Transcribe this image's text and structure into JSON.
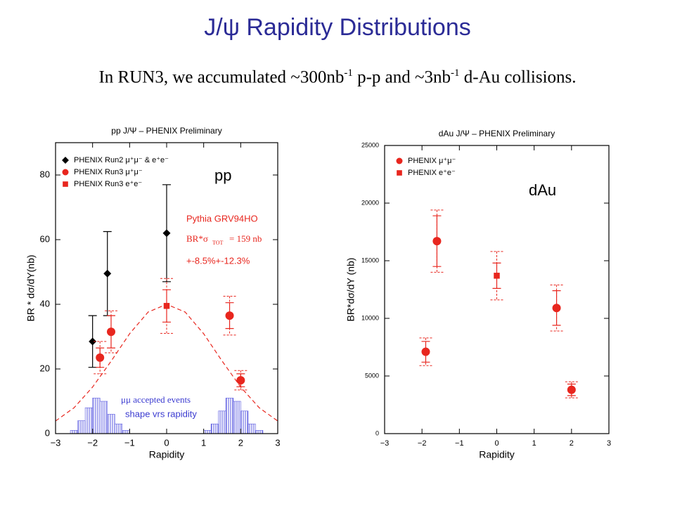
{
  "slide": {
    "title": "J/ψ Rapidity Distributions",
    "subtitle": [
      "In RUN3, we accumulated ~300nb",
      "-1",
      " p-p and ~3nb",
      "-1",
      " d-Au collisions."
    ]
  },
  "chart_data": [
    {
      "type": "scatter",
      "title": "pp J/Ψ – PHENIX Preliminary",
      "x_label": "Rapidity",
      "y_label": "BR * dσ/dY(nb)",
      "xlim": [
        -3,
        3
      ],
      "ylim": [
        0,
        90
      ],
      "xticks": [
        {
          "value": -3,
          "label": "−3"
        },
        {
          "value": -2,
          "label": "−2"
        },
        {
          "value": -1,
          "label": "−1"
        },
        0,
        1,
        2,
        3
      ],
      "yticks": [
        0,
        20,
        40,
        60,
        80
      ],
      "series": [
        {
          "name": "PHENIX Run2 μ⁺μ⁻ & e⁺e⁻",
          "color": "#000000",
          "marker": "diamond",
          "x": [
            -2,
            -1.6,
            0
          ],
          "values": [
            28.5,
            49.5,
            62
          ],
          "errors": [
            8,
            13,
            15
          ]
        },
        {
          "name": "PHENIX Run3 μ⁺μ⁻",
          "color": "#e8261e",
          "marker": "circle",
          "x": [
            -1.8,
            -1.5,
            1.7,
            2
          ],
          "values": [
            23.5,
            31.5,
            36.5,
            16.5
          ],
          "errors": [
            3,
            5,
            4,
            2
          ],
          "sys_errors": [
            5,
            6.5,
            6,
            3
          ]
        },
        {
          "name": "PHENIX Run3 e⁺e⁻",
          "color": "#e8261e",
          "marker": "square",
          "x": [
            0
          ],
          "values": [
            39.5
          ],
          "errors": [
            5
          ],
          "sys_errors": [
            8.5
          ]
        }
      ],
      "curve": {
        "color": "#e8261e",
        "dashed": true,
        "x": [
          -3,
          -2.5,
          -2,
          -1.5,
          -1,
          -0.5,
          0,
          0.5,
          1,
          1.5,
          2,
          2.5,
          3
        ],
        "values": [
          3.9,
          8.0,
          14.4,
          22.4,
          30.9,
          37.6,
          40,
          37.6,
          30.9,
          22.4,
          14.4,
          8.0,
          3.9
        ]
      },
      "histograms": [
        {
          "color": "#5a5ae0",
          "bins": [
            -2.6,
            -2.4,
            -2.2,
            -2.0,
            -1.8,
            -1.6,
            -1.4,
            -1.2,
            -1.0
          ],
          "values": [
            1,
            4,
            8,
            11,
            10,
            6,
            3,
            1
          ]
        },
        {
          "color": "#5a5ae0",
          "bins": [
            1.0,
            1.2,
            1.4,
            1.6,
            1.8,
            2.0,
            2.2,
            2.4,
            2.6
          ],
          "values": [
            1,
            3,
            7,
            11,
            10,
            7,
            3,
            1
          ]
        }
      ],
      "annotations": [
        "pp",
        "Pythia GRV94HO",
        "BR*σ",
        "TOT",
        "= 159 nb",
        "+-8.5%+-12.3%",
        "μμ accepted events",
        "shape vrs rapidity"
      ]
    },
    {
      "type": "scatter",
      "title": "dAu J/Ψ – PHENIX Preliminary",
      "x_label": "Rapidity",
      "y_label": "BR*dσ/dY (nb)",
      "xlim": [
        -3,
        3
      ],
      "ylim": [
        0,
        25000
      ],
      "xticks": [
        {
          "value": -3,
          "label": "−3"
        },
        {
          "value": -2,
          "label": "−2"
        },
        {
          "value": -1,
          "label": "−1"
        },
        0,
        1,
        2,
        3
      ],
      "yticks": [
        0,
        5000,
        10000,
        15000,
        20000,
        25000
      ],
      "series": [
        {
          "name": "PHENIX μ⁺μ⁻",
          "color": "#e8261e",
          "marker": "circle",
          "x": [
            -1.9,
            -1.6,
            1.6,
            2
          ],
          "values": [
            7100,
            16700,
            10900,
            3800
          ],
          "errors": [
            900,
            2200,
            1500,
            500
          ],
          "sys_errors": [
            1200,
            2700,
            2000,
            700
          ]
        },
        {
          "name": "PHENIX e⁺e⁻",
          "color": "#e8261e",
          "marker": "square",
          "x": [
            0
          ],
          "values": [
            13700
          ],
          "errors": [
            1100
          ],
          "sys_errors": [
            2100
          ]
        }
      ],
      "annotations": [
        "dAu"
      ]
    }
  ]
}
